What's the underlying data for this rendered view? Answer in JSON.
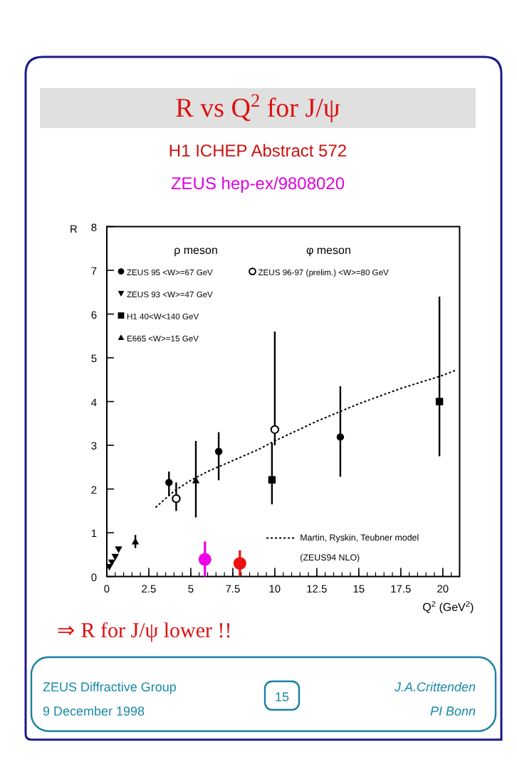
{
  "chart_data": {
    "type": "scatter",
    "title": "R vs Q$^{2}$ for J/ψ",
    "subtitle": "H1 ICHEP Abstract 572",
    "xlabel": "Q$^{2}$ (GeV$^{2}$)",
    "ylabel": "R",
    "xlim": [
      0,
      21
    ],
    "ylim": [
      0,
      8
    ],
    "xticks": [
      0,
      2.5,
      5,
      7.5,
      10,
      12.5,
      15,
      17.5,
      20
    ],
    "yticks": [
      0,
      1,
      2,
      3,
      4,
      5,
      6,
      7,
      8
    ],
    "grid": false,
    "legend": "center",
    "series": [
      {
        "name": "ZEUS 95 <W>=67 GeV",
        "color": "#000000",
        "marker": "circle",
        "x": [
          3.7,
          6.66,
          13.9
        ],
        "values": [
          2.15,
          2.86,
          3.19
        ],
        "errors": [
          [
            1.85,
            2.4
          ],
          [
            2.2,
            3.3
          ],
          [
            2.28,
            4.35
          ]
        ]
      },
      {
        "name": "ZEUS 93 <W>=47 GeV",
        "color": "#000000",
        "marker": "triangle-down",
        "x": [
          0.15,
          0.3,
          0.5,
          0.7
        ],
        "values": [
          0.22,
          0.32,
          0.45,
          0.62
        ]
      },
      {
        "name": "H1 40<W<140 GeV",
        "color": "#000000",
        "marker": "square",
        "x": [
          9.83,
          19.8
        ],
        "values": [
          2.21,
          4.0
        ],
        "errors": [
          [
            1.65,
            3.05
          ],
          [
            2.75,
            6.4
          ]
        ]
      },
      {
        "name": "E665 <W>=15 GeV",
        "color": "#000000",
        "marker": "triangle",
        "x": [
          1.7,
          5.3
        ],
        "values": [
          0.8,
          2.2
        ],
        "errors": [
          [
            0.65,
            0.95
          ],
          [
            1.35,
            3.1
          ]
        ]
      },
      {
        "name": "ZEUS 96-97 (prelim.) <W>=80 GeV",
        "color": "#000000",
        "marker": "open-circle",
        "x": [
          4.13,
          10.0
        ],
        "values": [
          1.78,
          3.36
        ],
        "errors": [
          [
            1.5,
            2.15
          ],
          [
            3.0,
            5.6
          ]
        ]
      },
      {
        "name": "Martin, Ryskin, Teubner model",
        "type": "line",
        "line_style": "dotted",
        "color": "#000000",
        "x": [
          2.9,
          4,
          5,
          6,
          7.5,
          9,
          10,
          12.5,
          15,
          17.5,
          20,
          20.8
        ],
        "values": [
          1.58,
          1.95,
          2.2,
          2.4,
          2.65,
          2.9,
          3.1,
          3.55,
          3.95,
          4.3,
          4.6,
          4.72
        ]
      },
      {
        "color": "#ee00ee",
        "marker": "circle",
        "x": [
          5.84
        ],
        "values": [
          0.39
        ],
        "errors": [
          [
            0,
            0.8
          ]
        ]
      },
      {
        "color": "#ee1111",
        "marker": "circle",
        "x": [
          7.92
        ],
        "values": [
          0.3
        ],
        "errors": [
          [
            0,
            0.6
          ]
        ]
      }
    ],
    "annotations": [
      "ZEUS hep-ex/9808020",
      "ρ meson",
      "φ meson",
      "(ZEUS94 NLO)",
      "⇒ R for J/ψ lower !!",
      "ZEUS Diffractive Group",
      "9 December 1998",
      "15",
      "J.A.Crittenden",
      "PI Bonn"
    ]
  }
}
